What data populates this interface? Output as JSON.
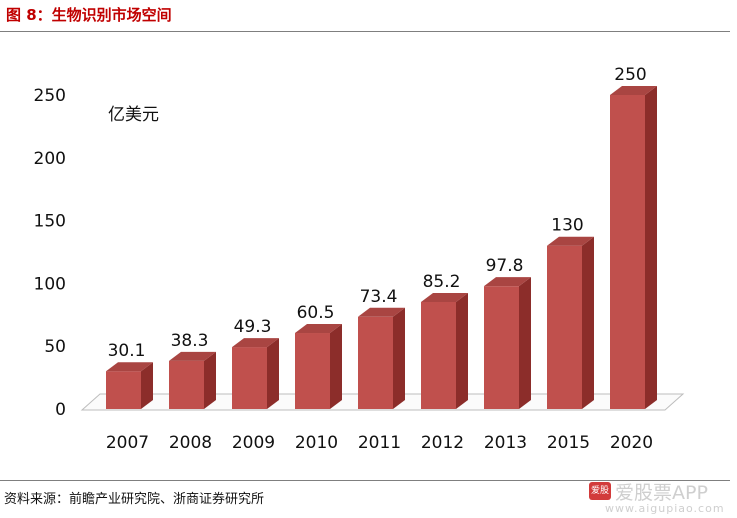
{
  "figure_title": "图 8：生物识别市场空间",
  "source_text": "资料来源：前瞻产业研究院、浙商证券研究所",
  "watermark": {
    "name": "爱股票APP",
    "url": "www.aigupiao.com",
    "logo_text": "爱股票"
  },
  "chart_data": {
    "type": "bar",
    "title": "",
    "unit_label": "亿美元",
    "categories": [
      "2007",
      "2008",
      "2009",
      "2010",
      "2011",
      "2012",
      "2013",
      "2015",
      "2020"
    ],
    "values": [
      30.1,
      38.3,
      49.3,
      60.5,
      73.4,
      85.2,
      97.8,
      130,
      250
    ],
    "data_labels": [
      "30.1",
      "38.3",
      "49.3",
      "60.5",
      "73.4",
      "85.2",
      "97.8",
      "130",
      "250"
    ],
    "ylim": [
      0,
      250
    ],
    "yticks": [
      "0",
      "50",
      "100",
      "150",
      "200",
      "250"
    ],
    "grid": false,
    "three_d": true,
    "colors": {
      "bar_front": "#c0504d",
      "bar_side": "#8c2d2a",
      "bar_top": "#a94542"
    }
  }
}
